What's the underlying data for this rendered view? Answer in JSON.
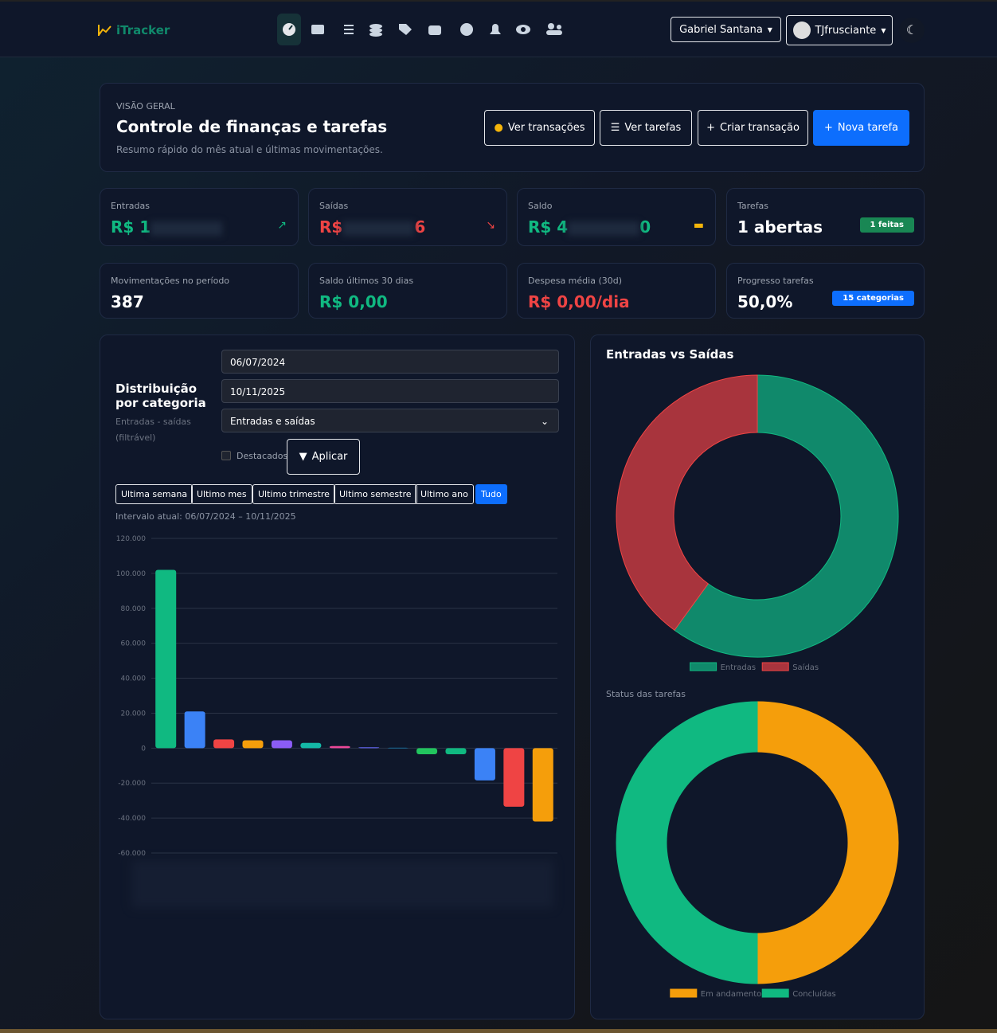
{
  "nav": {
    "brand": "iTracker",
    "account": "Gabriel Santana",
    "profile": "TJfrusciante"
  },
  "header": {
    "eyebrow": "VISÃO GERAL",
    "title": "Controle de finanças e tarefas",
    "subtitle": "Resumo rápido do mês atual e últimas movimentações.",
    "buttons": [
      "Ver transações",
      "Ver tarefas",
      "Criar transação",
      "Nova tarefa"
    ]
  },
  "stats": [
    {
      "label": "Entradas",
      "value": [
        "R$ 1",
        ""
      ]
    },
    {
      "label": "Saídas",
      "value": [
        "R$",
        "6"
      ]
    },
    {
      "label": "Saldo",
      "value": [
        "R$ 4",
        "0"
      ]
    },
    {
      "label": "Tarefas",
      "value": "1 abertas",
      "badge": "1 feitas"
    },
    {
      "label": "Movimentações no período",
      "value": "387"
    },
    {
      "label": "Saldo últimos 30 dias",
      "value": "R$ 0,00"
    },
    {
      "label": "Despesa média (30d)",
      "value": "R$ 0,00/dia"
    },
    {
      "label": "Progresso tarefas",
      "value": "50,0%",
      "badge": "15 categorias"
    }
  ],
  "filters": {
    "start": "06/07/2024",
    "end": "10/11/2025",
    "kind": "Entradas e saídas",
    "checkbox": "Destacados",
    "apply": "Aplicar",
    "ranges": [
      "Ultima semana",
      "Ultimo mes",
      "Ultimo trimestre",
      "Ultimo semestre",
      "Ultimo ano",
      "Tudo"
    ],
    "interval": "Intervalo atual: 06/07/2024 – 10/11/2025"
  },
  "chart_data": [
    {
      "type": "bar",
      "title": "Distribuição por categoria",
      "subtitle": "Entradas - saídas (filtrável)",
      "categories": [
        null,
        null,
        null,
        null,
        null,
        null,
        null,
        null,
        null,
        null,
        null,
        null,
        null,
        null
      ],
      "values": [
        102000,
        21000,
        5000,
        4500,
        4500,
        3000,
        1200,
        500,
        200,
        -3500,
        -3500,
        -18500,
        -33500,
        -42000
      ],
      "colors": [
        "#10b981",
        "#3b82f6",
        "#ef4444",
        "#f59e0b",
        "#8b5cf6",
        "#14b8a6",
        "#ec4899",
        "#6366f1",
        "#0ea5e9",
        "#22c55e",
        "#10b981",
        "#3b82f6",
        "#ef4444",
        "#f59e0b"
      ],
      "ylim": [
        -60000,
        120000
      ],
      "yticks": [
        {
          "value": -60000,
          "label": "-60.000"
        },
        {
          "value": -40000,
          "label": "-40.000"
        },
        {
          "value": -20000,
          "label": "-20.000"
        },
        0,
        {
          "value": 20000,
          "label": "20.000"
        },
        {
          "value": 40000,
          "label": "40.000"
        },
        {
          "value": 60000,
          "label": "60.000"
        },
        {
          "value": 80000,
          "label": "80.000"
        },
        {
          "value": 100000,
          "label": "100.000"
        },
        {
          "value": 120000,
          "label": "120.000"
        }
      ],
      "grid": true
    },
    {
      "type": "doughnut",
      "title": "Entradas vs Saídas",
      "categories": [
        "Entradas",
        "Saídas"
      ],
      "values": [
        60,
        40
      ],
      "colors": [
        "#10896b",
        "#a8343d"
      ],
      "borders": [
        "#10b981",
        "#ef4444"
      ]
    },
    {
      "type": "doughnut",
      "title": "Status das tarefas",
      "categories": [
        "Em andamento",
        "Concluídas"
      ],
      "values": [
        50,
        50
      ],
      "colors": [
        "#f59e0b",
        "#10b981"
      ],
      "borders": [
        "#f59e0b",
        "#10b981"
      ]
    }
  ]
}
